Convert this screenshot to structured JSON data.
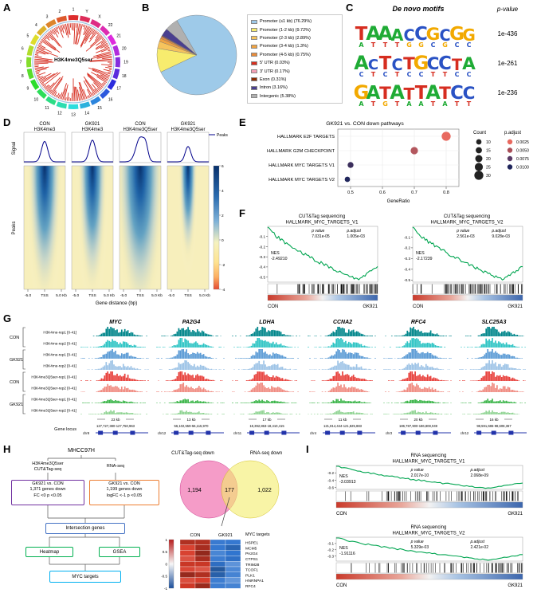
{
  "panelA": {
    "letter": "A",
    "center_label": "H3K4me3Q5ser",
    "chromosomes": [
      "1",
      "2",
      "3",
      "4",
      "5",
      "6",
      "7",
      "8",
      "9",
      "10",
      "11",
      "12",
      "13",
      "14",
      "15",
      "16",
      "17",
      "18",
      "19",
      "20",
      "21",
      "22",
      "X",
      "Y"
    ],
    "track_color": "#d62d20"
  },
  "panelB": {
    "letter": "B",
    "chart_data": {
      "type": "pie",
      "slices": [
        {
          "label": "Promoter (≤1 kb) (76.29%)",
          "value": 76.29,
          "color": "#9ecae9"
        },
        {
          "label": "Promoter (1-2 kb) (9.72%)",
          "value": 9.72,
          "color": "#f7ec6e"
        },
        {
          "label": "Promoter (2-3 kb) (2.89%)",
          "value": 2.89,
          "color": "#f6c35c"
        },
        {
          "label": "Promoter (3-4 kb) (1.3%)",
          "value": 1.3,
          "color": "#f1a340"
        },
        {
          "label": "Promoter (4-5 kb) (0.75%)",
          "value": 0.75,
          "color": "#e98b39"
        },
        {
          "label": "5' UTR (0.03%)",
          "value": 0.03,
          "color": "#d7301f"
        },
        {
          "label": "3' UTR (0.17%)",
          "value": 0.17,
          "color": "#f4a0b5"
        },
        {
          "label": "Exon (0.31%)",
          "value": 0.31,
          "color": "#8c2d04"
        },
        {
          "label": "Intron (3.16%)",
          "value": 3.16,
          "color": "#4a3f8f"
        },
        {
          "label": "Intergenic (5.38%)",
          "value": 5.38,
          "color": "#b0b0b0"
        }
      ]
    }
  },
  "panelC": {
    "letter": "C",
    "title": "De novo motifs",
    "pvalue_header": "p-value",
    "base_colors": {
      "A": "#1fab35",
      "C": "#2a52c4",
      "G": "#f2a900",
      "T": "#d62d20"
    },
    "motifs": [
      {
        "p": "1e-436",
        "main": "TAAACCGCGG",
        "heights": [
          0.95,
          1,
          1,
          0.85,
          0.8,
          0.95,
          0.9,
          0.8,
          0.95,
          0.85
        ],
        "sub": "ATTTGGCGCC"
      },
      {
        "p": "1e-261",
        "main": "ACTCTGCCTA",
        "heights": [
          1,
          0.75,
          0.95,
          0.8,
          0.9,
          1,
          0.9,
          0.95,
          0.8,
          0.9
        ],
        "sub": "CTCTCCTTCC"
      },
      {
        "p": "1e-236",
        "main": "GATATTATCC",
        "heights": [
          1,
          0.95,
          0.9,
          1,
          0.85,
          0.95,
          1,
          0.9,
          0.95,
          0.9
        ],
        "sub": "ATGTAATATT"
      }
    ]
  },
  "panelD": {
    "letter": "D",
    "signal_label": "Signal",
    "peaks_label": "Peaks",
    "curve_legend": "Peaks",
    "xlabel": "Gene distance (bp)",
    "xticks": [
      "-5.0",
      "TSS",
      "5.0 Kb"
    ],
    "colorbar_ticks": [
      "6",
      "4",
      "2",
      "0",
      "-2",
      "-4"
    ],
    "columns": [
      {
        "line1": "CON",
        "line2": "H3K4me3",
        "peak": 0.8,
        "sigma": 5.5,
        "band": 0.36,
        "depth": 1.0
      },
      {
        "line1": "GK921",
        "line2": "H3K4me3",
        "peak": 0.85,
        "sigma": 5.5,
        "band": 0.33,
        "depth": 0.95
      },
      {
        "line1": "CON",
        "line2": "H3K4me3Q5ser",
        "peak": 0.95,
        "sigma": 7.5,
        "band": 0.46,
        "depth": 1.1
      },
      {
        "line1": "GK921",
        "line2": "H3K4me3Q5ser",
        "peak": 0.6,
        "sigma": 5.0,
        "band": 0.28,
        "depth": 0.7
      }
    ]
  },
  "panelE": {
    "letter": "E",
    "title": "GK921 vs. CON down pathways",
    "chart_data": {
      "type": "scatter",
      "xlabel": "GeneRatio",
      "xticks": [
        "0.5",
        "0.6",
        "0.7",
        "0.8"
      ],
      "xlim": [
        0.46,
        0.84
      ],
      "points": [
        {
          "label": "HALLMARK E2F TARGETS",
          "gene_ratio": 0.8,
          "count": 30,
          "p_adjust": 0.0025
        },
        {
          "label": "HALLMARK G2M CHECKPOINT",
          "gene_ratio": 0.7,
          "count": 21,
          "p_adjust": 0.0045
        },
        {
          "label": "HALLMARK MYC TARGETS V1",
          "gene_ratio": 0.5,
          "count": 13,
          "p_adjust": 0.009
        },
        {
          "label": "HALLMARK MYC TARGETS V2",
          "gene_ratio": 0.49,
          "count": 10,
          "p_adjust": 0.01
        }
      ],
      "legend_count": {
        "title": "Count",
        "items": [
          10,
          15,
          20,
          25,
          30
        ]
      },
      "legend_padjust": {
        "title": "p.adjust",
        "items": [
          "0.0025",
          "0.0050",
          "0.0075",
          "0.0100"
        ],
        "colors": [
          "#e8695f",
          "#a94e58",
          "#5a3b66",
          "#20265c"
        ]
      }
    }
  },
  "panelF": {
    "letter": "F",
    "plots": [
      {
        "title1": "CUT&Tag sequencing",
        "title2": "HALLMARK_MYC_TARGETS_V1",
        "p_label": "p value",
        "padj_label": "p.adjust",
        "p": "7.031e-05",
        "padj": "1.005e-03",
        "nes_label": "NES",
        "nes": "-2.49210",
        "yticks": [
          -0.1,
          -0.2,
          -0.3,
          -0.4,
          -0.5
        ],
        "es_min": -0.55,
        "left": "CON",
        "right": "GK921",
        "seed": 11
      },
      {
        "title1": "CUT&Tag sequencing",
        "title2": "HALLMARK_MYC_TARGETS_V2",
        "p_label": "p value",
        "padj_label": "p.adjust",
        "p": "2.561e-03",
        "padj": "9.028e-03",
        "nes_label": "NES",
        "nes": "-2.17239",
        "yticks": [
          -0.1,
          -0.2,
          -0.3,
          -0.4,
          -0.5
        ],
        "es_min": -0.52,
        "left": "CON",
        "right": "GK921",
        "seed": 23
      }
    ]
  },
  "panelG": {
    "letter": "G",
    "genes": [
      "MYC",
      "PA2G4",
      "LDHA",
      "CCNA2",
      "RFC4",
      "SLC25A3"
    ],
    "groups": [
      {
        "name": "CON",
        "rows": [
          0,
          1
        ]
      },
      {
        "name": "GK921",
        "rows": [
          2,
          3
        ]
      },
      {
        "name": "CON",
        "rows": [
          4,
          5
        ]
      },
      {
        "name": "GK921",
        "rows": [
          6,
          7
        ]
      }
    ],
    "tracks": [
      {
        "label": "H3K4me-rep1 [0-41]",
        "color": "#00868b",
        "amp": 1.0
      },
      {
        "label": "H3K4me-rep2 [0-41]",
        "color": "#2ec4c4",
        "amp": 0.9
      },
      {
        "label": "H3K4me-rep1 [0-41]",
        "color": "#5b9bd5",
        "amp": 0.95
      },
      {
        "label": "H3K4me-rep2 [0-41]",
        "color": "#9dc3e6",
        "amp": 0.85
      },
      {
        "label": "H3K4me3Q5ser-rep1 [0-41]",
        "color": "#e8413c",
        "amp": 1.0
      },
      {
        "label": "H3K4me3Q5ser-rep2 [0-41]",
        "color": "#f08a80",
        "amp": 0.9
      },
      {
        "label": "H3K4me3Q5ser-rep1 [0-41]",
        "color": "#3cb54a",
        "amp": 0.4
      },
      {
        "label": "H3K4me3Q5ser-rep2 [0-41]",
        "color": "#90d493",
        "amp": 0.35
      }
    ],
    "gene_locus_label": "Gene locus",
    "loci": [
      {
        "scale": "23 kb",
        "chrom": "chr8",
        "coords": "127,727,380-127,750,963"
      },
      {
        "scale": "13 kb",
        "chrom": "chr12",
        "coords": "56,102,559-56,115,970"
      },
      {
        "scale": "17 kb",
        "chrom": "chr11",
        "coords": "18,392,863-18,410,415"
      },
      {
        "scale": "11 kb",
        "chrom": "chr4",
        "coords": "121,814,444-121,825,883"
      },
      {
        "scale": "20 kb",
        "chrom": "chr3",
        "coords": "186,787,900-186,808,049"
      },
      {
        "scale": "16 kb",
        "chrom": "chr12",
        "coords": "98,591,686-98,608,367"
      }
    ]
  },
  "panelH": {
    "letter": "H",
    "flow": {
      "root": "MHCC97H",
      "branch_left": [
        "H3K4me3Q5ser",
        "CUT&Tag-seq"
      ],
      "branch_right": "RNA-seq",
      "box_left": [
        "GK921 vs. CON",
        "1,371 genes down",
        "FC <0 p <0.05"
      ],
      "box_right": [
        "GK921 vs. CON",
        "1,199 genes down",
        "logFC <-1 p <0.05"
      ],
      "intersection": "Intersection genes",
      "heatmap": "Heatmap",
      "gsea": "GSEA",
      "myc": "MYC targets"
    },
    "venn": {
      "left_title": "CUT&Tag-seq down",
      "right_title": "RNA-seq down",
      "left_value": "1,194",
      "overlap": "177",
      "right_value": "1,022"
    },
    "heatmap": {
      "col_headers": [
        "CON",
        "GK921"
      ],
      "row_label_title": "MYC targets",
      "genes": [
        "HSPE1",
        "MCM5",
        "PA2G4",
        "CTPS1",
        "TRIM28",
        "TCOF1",
        "PLK1",
        "HNRNPA1",
        "RFC4"
      ],
      "scale_ticks": [
        "1",
        "0.5",
        "0",
        "-0.5",
        "-1"
      ]
    }
  },
  "panelI": {
    "letter": "I",
    "plots": [
      {
        "title1": "RNA sequencing",
        "title2": "HALLMARK_MYC_TARGETS_V1",
        "p_label": "p value",
        "padj_label": "p.adjust",
        "p": "2.017e-10",
        "padj": "2.068e-09",
        "nes_label": "NES",
        "nes": "-3.03913",
        "yticks": [
          -0.2,
          -0.4,
          -0.6
        ],
        "es_min": -0.65,
        "left": "CON",
        "right": "GK921",
        "seed": 37
      },
      {
        "title1": "RNA sequencing",
        "title2": "HALLMARK_MYC_TARGETS_V2",
        "p_label": "p value",
        "padj_label": "p.adjust",
        "p": "5.329e-03",
        "padj": "2.421e-02",
        "nes_label": "NES",
        "nes": "-1.91116",
        "yticks": [
          -0.1,
          -0.2,
          -0.3
        ],
        "es_min": -0.38,
        "left": "CON",
        "right": "GK921",
        "seed": 53
      }
    ]
  }
}
